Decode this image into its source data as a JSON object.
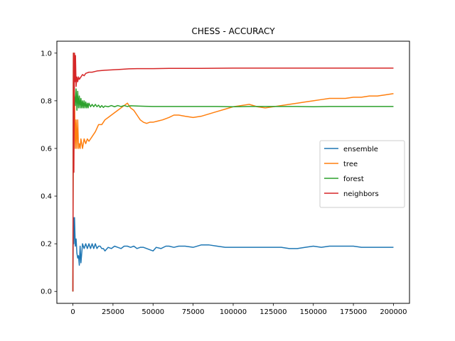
{
  "chart_data": {
    "type": "line",
    "title": "CHESS - ACCURACY",
    "xlabel": "",
    "ylabel": "",
    "xlim": [
      -10000,
      210000
    ],
    "ylim": [
      -0.05,
      1.05
    ],
    "xticks": [
      0,
      25000,
      50000,
      75000,
      100000,
      125000,
      150000,
      175000,
      200000
    ],
    "yticks": [
      0.0,
      0.2,
      0.4,
      0.6,
      0.8,
      1.0
    ],
    "xtick_labels": [
      "0",
      "25000",
      "50000",
      "75000",
      "100000",
      "125000",
      "150000",
      "175000",
      "200000"
    ],
    "ytick_labels": [
      "0.0",
      "0.2",
      "0.4",
      "0.6",
      "0.8",
      "1.0"
    ],
    "grid": false,
    "legend_position": "center-right",
    "series": [
      {
        "name": "ensemble",
        "color": "#1f77b4",
        "x": [
          0,
          300,
          600,
          1000,
          1500,
          2000,
          2500,
          3000,
          3500,
          4000,
          4500,
          5000,
          6000,
          7000,
          8000,
          9000,
          10000,
          11000,
          12000,
          13000,
          14000,
          15000,
          16000,
          17000,
          18000,
          19000,
          20000,
          22000,
          24000,
          26000,
          28000,
          30000,
          32000,
          34000,
          36000,
          38000,
          40000,
          42000,
          44000,
          46000,
          48000,
          50000,
          52000,
          55000,
          58000,
          60000,
          63000,
          66000,
          70000,
          75000,
          80000,
          85000,
          90000,
          95000,
          100000,
          110000,
          120000,
          130000,
          135000,
          140000,
          145000,
          150000,
          155000,
          160000,
          165000,
          170000,
          175000,
          180000,
          185000,
          190000,
          195000,
          200000
        ],
        "y": [
          0.0,
          0.31,
          0.2,
          0.31,
          0.19,
          0.22,
          0.16,
          0.14,
          0.15,
          0.11,
          0.19,
          0.12,
          0.2,
          0.18,
          0.2,
          0.18,
          0.2,
          0.18,
          0.2,
          0.18,
          0.2,
          0.18,
          0.19,
          0.19,
          0.18,
          0.18,
          0.17,
          0.185,
          0.18,
          0.19,
          0.185,
          0.18,
          0.19,
          0.19,
          0.185,
          0.19,
          0.18,
          0.185,
          0.185,
          0.18,
          0.175,
          0.17,
          0.185,
          0.18,
          0.19,
          0.19,
          0.185,
          0.19,
          0.19,
          0.185,
          0.195,
          0.195,
          0.19,
          0.185,
          0.185,
          0.185,
          0.185,
          0.185,
          0.18,
          0.18,
          0.185,
          0.19,
          0.185,
          0.19,
          0.19,
          0.19,
          0.19,
          0.185,
          0.185,
          0.185,
          0.185,
          0.185
        ]
      },
      {
        "name": "tree",
        "color": "#ff7f0e",
        "x": [
          0,
          300,
          600,
          1000,
          1500,
          2000,
          2500,
          3000,
          3500,
          4000,
          4500,
          5000,
          6000,
          7000,
          8000,
          9000,
          10000,
          12000,
          14000,
          16000,
          18000,
          20000,
          22000,
          24000,
          26000,
          28000,
          30000,
          32000,
          34000,
          36000,
          38000,
          40000,
          42000,
          44000,
          46000,
          48000,
          50000,
          53000,
          56000,
          60000,
          63000,
          66000,
          70000,
          75000,
          80000,
          85000,
          90000,
          95000,
          100000,
          105000,
          110000,
          115000,
          120000,
          125000,
          130000,
          135000,
          140000,
          145000,
          150000,
          155000,
          160000,
          165000,
          170000,
          175000,
          180000,
          185000,
          190000,
          195000,
          200000
        ],
        "y": [
          0.0,
          1.0,
          0.9,
          0.82,
          0.6,
          0.72,
          0.6,
          0.72,
          0.6,
          0.62,
          0.6,
          0.64,
          0.6,
          0.64,
          0.62,
          0.64,
          0.63,
          0.65,
          0.67,
          0.7,
          0.7,
          0.72,
          0.73,
          0.74,
          0.75,
          0.76,
          0.77,
          0.78,
          0.79,
          0.77,
          0.76,
          0.74,
          0.72,
          0.71,
          0.705,
          0.71,
          0.71,
          0.715,
          0.72,
          0.73,
          0.74,
          0.74,
          0.735,
          0.73,
          0.735,
          0.745,
          0.755,
          0.765,
          0.775,
          0.78,
          0.785,
          0.775,
          0.77,
          0.775,
          0.78,
          0.785,
          0.79,
          0.795,
          0.8,
          0.805,
          0.81,
          0.81,
          0.81,
          0.815,
          0.815,
          0.82,
          0.82,
          0.825,
          0.83
        ]
      },
      {
        "name": "forest",
        "color": "#2ca02c",
        "x": [
          0,
          300,
          600,
          1000,
          1500,
          2000,
          2500,
          3000,
          3500,
          4000,
          4500,
          5000,
          5500,
          6000,
          6500,
          7000,
          7500,
          8000,
          8500,
          9000,
          9500,
          10000,
          11000,
          12000,
          13000,
          14000,
          15000,
          16000,
          17000,
          18000,
          19000,
          20000,
          22000,
          24000,
          26000,
          28000,
          30000,
          32000,
          34000,
          36000,
          40000,
          45000,
          50000,
          60000,
          70000,
          80000,
          90000,
          100000,
          110000,
          120000,
          130000,
          140000,
          150000,
          160000,
          170000,
          180000,
          190000,
          200000
        ],
        "y": [
          0.0,
          1.0,
          0.9,
          0.82,
          0.78,
          0.85,
          0.76,
          0.84,
          0.77,
          0.82,
          0.77,
          0.81,
          0.77,
          0.8,
          0.77,
          0.8,
          0.77,
          0.795,
          0.77,
          0.79,
          0.77,
          0.79,
          0.775,
          0.785,
          0.775,
          0.785,
          0.775,
          0.782,
          0.772,
          0.78,
          0.772,
          0.778,
          0.775,
          0.78,
          0.775,
          0.78,
          0.776,
          0.78,
          0.776,
          0.779,
          0.778,
          0.777,
          0.776,
          0.776,
          0.776,
          0.776,
          0.776,
          0.775,
          0.776,
          0.776,
          0.776,
          0.776,
          0.775,
          0.776,
          0.776,
          0.776,
          0.776,
          0.776
        ]
      },
      {
        "name": "neighbors",
        "color": "#d62728",
        "x": [
          0,
          300,
          600,
          1000,
          1300,
          1600,
          2000,
          2500,
          3000,
          3500,
          4000,
          5000,
          6000,
          7000,
          8000,
          10000,
          12000,
          15000,
          20000,
          25000,
          30000,
          35000,
          40000,
          50000,
          60000,
          80000,
          100000,
          120000,
          140000,
          160000,
          180000,
          200000
        ],
        "y": [
          0.0,
          1.0,
          0.5,
          1.0,
          0.88,
          0.99,
          0.86,
          0.9,
          0.88,
          0.9,
          0.89,
          0.9,
          0.91,
          0.905,
          0.915,
          0.92,
          0.92,
          0.925,
          0.928,
          0.93,
          0.932,
          0.934,
          0.935,
          0.935,
          0.936,
          0.936,
          0.937,
          0.937,
          0.937,
          0.937,
          0.937,
          0.937
        ]
      }
    ]
  }
}
